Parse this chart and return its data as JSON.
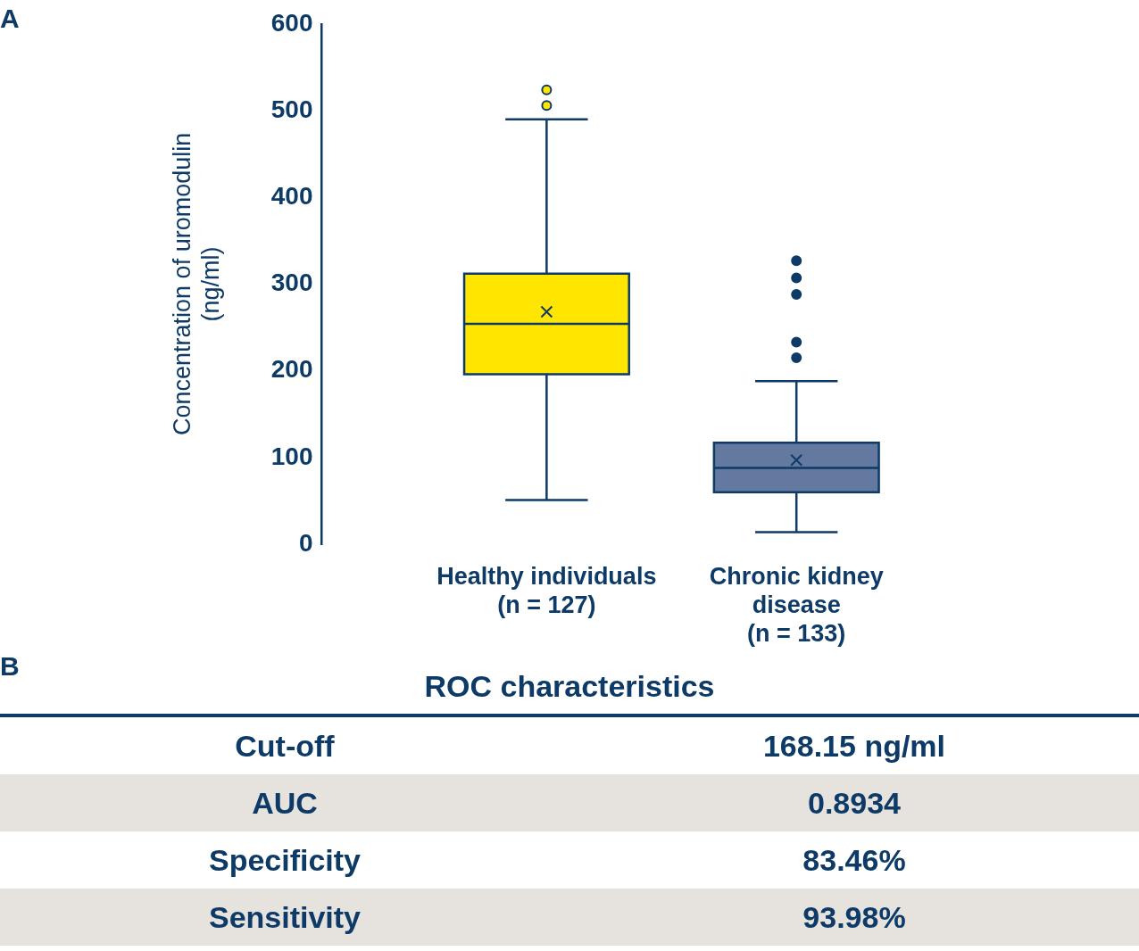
{
  "chart_data": [
    {
      "type": "box",
      "ylabel": "Concentration of uromodulin\n(ng/ml)",
      "categories": [
        "Healthy individuals\n(n = 127)",
        "Chronic kidney\ndisease\n(n = 133)"
      ],
      "colors": [
        "#ffe600",
        "#64799f"
      ],
      "boxes": [
        {
          "low": 51,
          "q1": 196,
          "median": 254,
          "q3": 312,
          "high": 490,
          "mean": 268,
          "outliers": [
            506,
            524
          ]
        },
        {
          "low": 14,
          "q1": 60,
          "median": 88,
          "q3": 117,
          "high": 188,
          "mean": 97,
          "outliers": [
            215,
            233,
            288,
            307,
            327
          ]
        }
      ],
      "ylim": [
        0,
        600
      ],
      "yticks": [
        0,
        100,
        200,
        300,
        400,
        500,
        600
      ],
      "grid": false,
      "annotations": [
        "A"
      ]
    },
    {
      "type": "other",
      "title": "ROC characteristics",
      "annotations": [
        "B",
        "Cut-off",
        "168.15 ng/ml",
        "AUC",
        "0.8934",
        "Specificity",
        "83.46%",
        "Sensitivity",
        "93.98%"
      ]
    }
  ]
}
